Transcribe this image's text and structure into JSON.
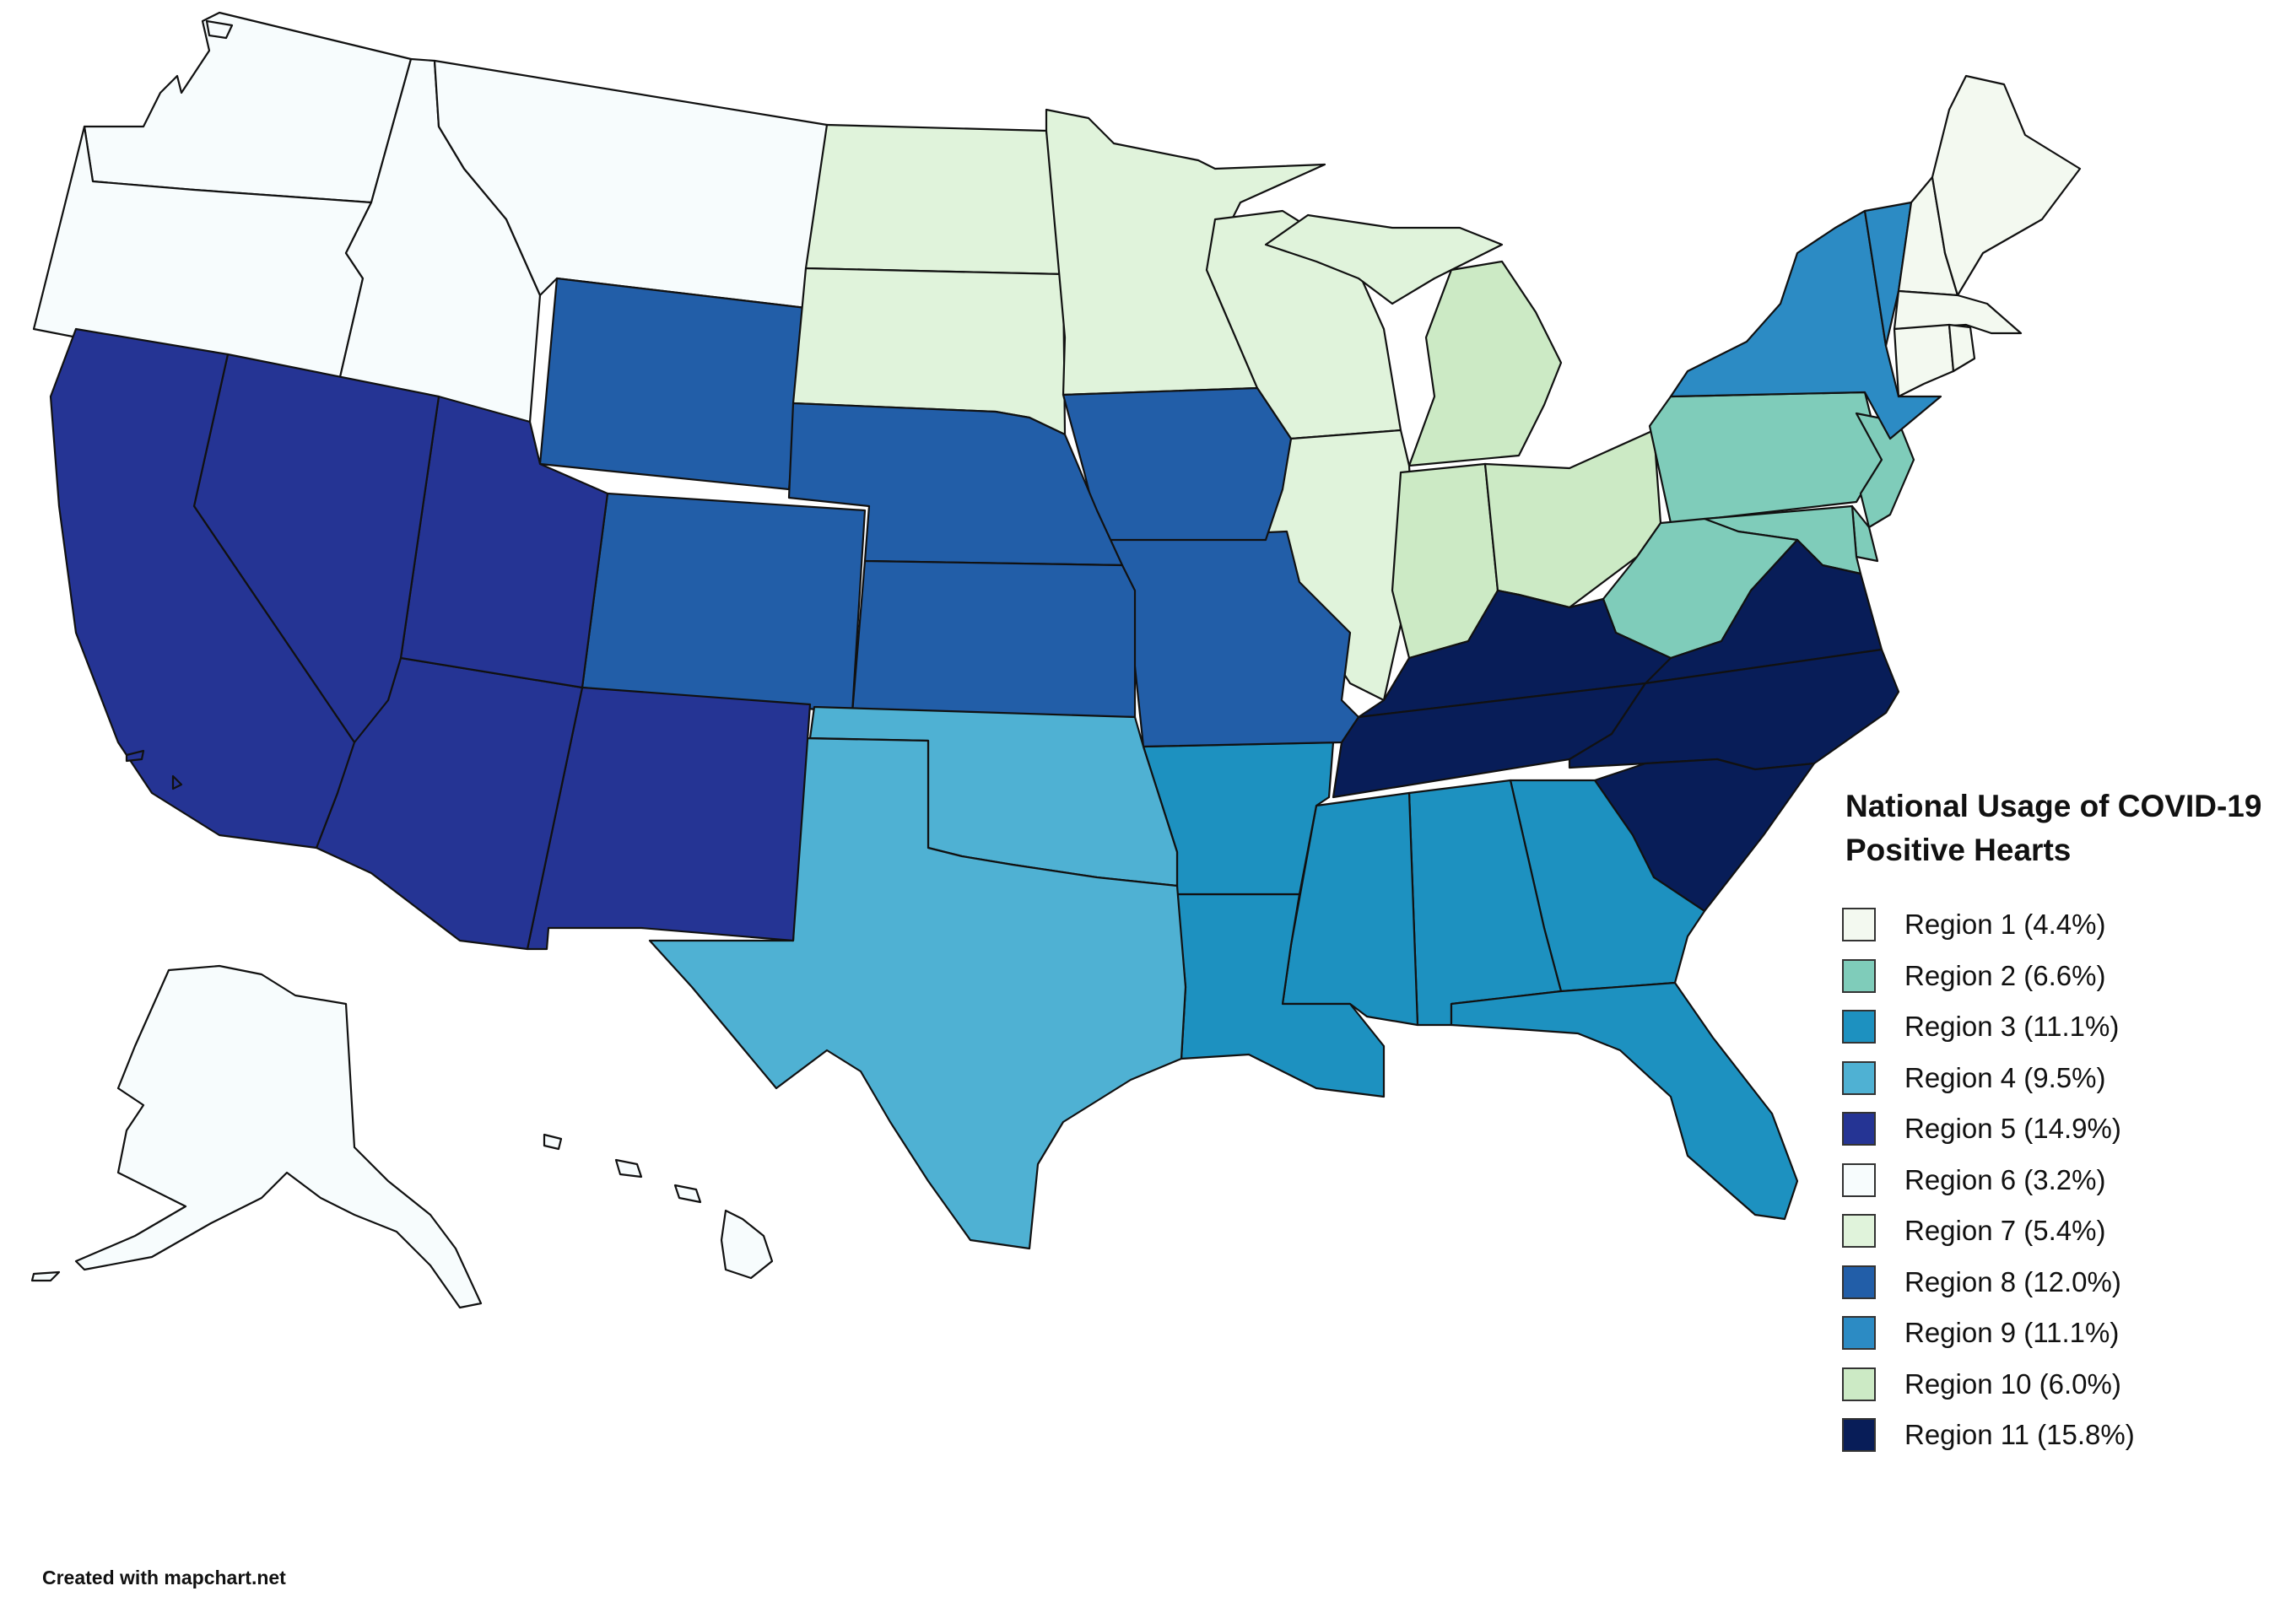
{
  "legend": {
    "title_line1": "National Usage of COVID-19",
    "title_line2": "Positive Hearts",
    "items": [
      {
        "label": "Region 1 (4.4%)",
        "color": "#f3f9f0"
      },
      {
        "label": "Region 2 (6.6%)",
        "color": "#7fccba"
      },
      {
        "label": "Region 3 (11.1%)",
        "color": "#1d91c0"
      },
      {
        "label": "Region 4 (9.5%)",
        "color": "#4fb1d3"
      },
      {
        "label": "Region 5 (14.9%)",
        "color": "#253494"
      },
      {
        "label": "Region 6 (3.2%)",
        "color": "#f7fcfd"
      },
      {
        "label": "Region 7 (5.4%)",
        "color": "#e0f3db"
      },
      {
        "label": "Region 8 (12.0%)",
        "color": "#225ea8"
      },
      {
        "label": "Region 9 (11.1%)",
        "color": "#2c8bc4"
      },
      {
        "label": "Region 10 (6.0%)",
        "color": "#cceac5"
      },
      {
        "label": "Region 11 (15.8%)",
        "color": "#081d58"
      }
    ]
  },
  "credit": "Created with mapchart.net",
  "map": {
    "regions": [
      {
        "region": 1,
        "states": [
          "Maine",
          "New Hampshire",
          "Massachusetts",
          "Connecticut",
          "Rhode Island"
        ]
      },
      {
        "region": 2,
        "states": [
          "Pennsylvania",
          "New Jersey",
          "Delaware",
          "Maryland",
          "West Virginia"
        ]
      },
      {
        "region": 3,
        "states": [
          "Arkansas",
          "Louisiana",
          "Mississippi",
          "Alabama",
          "Georgia",
          "Florida"
        ]
      },
      {
        "region": 4,
        "states": [
          "Texas",
          "Oklahoma"
        ]
      },
      {
        "region": 5,
        "states": [
          "California",
          "Nevada",
          "Utah",
          "Arizona",
          "New Mexico"
        ]
      },
      {
        "region": 6,
        "states": [
          "Washington",
          "Oregon",
          "Idaho",
          "Montana",
          "Alaska",
          "Hawaii"
        ]
      },
      {
        "region": 7,
        "states": [
          "North Dakota",
          "South Dakota",
          "Minnesota",
          "Wisconsin",
          "Illinois",
          "Michigan (Upper Peninsula)"
        ]
      },
      {
        "region": 8,
        "states": [
          "Wyoming",
          "Colorado",
          "Nebraska",
          "Kansas",
          "Iowa",
          "Missouri"
        ]
      },
      {
        "region": 9,
        "states": [
          "New York",
          "Vermont"
        ]
      },
      {
        "region": 10,
        "states": [
          "Michigan (Lower Peninsula)",
          "Indiana",
          "Ohio"
        ]
      },
      {
        "region": 11,
        "states": [
          "Kentucky",
          "Tennessee",
          "Virginia",
          "North Carolina",
          "South Carolina"
        ]
      }
    ]
  }
}
